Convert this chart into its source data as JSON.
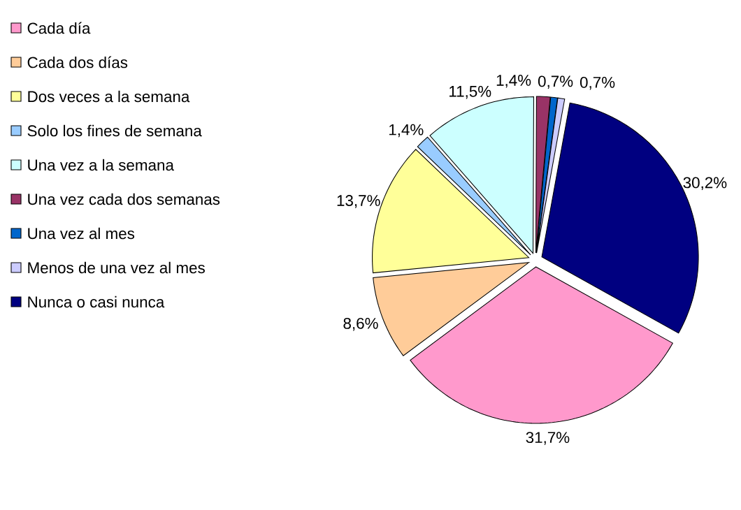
{
  "chart_data": {
    "type": "pie",
    "categories": [
      "Cada día",
      "Cada dos días",
      "Dos veces a la semana",
      "Solo los fines de semana",
      "Una vez a la semana",
      "Una vez cada dos semanas",
      "Una vez al mes",
      "Menos de una vez al mes",
      "Nunca o casi nunca"
    ],
    "values": [
      31.7,
      8.6,
      13.7,
      1.4,
      11.5,
      1.4,
      0.7,
      0.7,
      30.2
    ],
    "value_labels": [
      "31,7%",
      "8,6%",
      "13,7%",
      "1,4%",
      "11,5%",
      "1,4%",
      "0,7%",
      "0,7%",
      "30,2%"
    ],
    "colors": [
      "#ff99cc",
      "#ffcc99",
      "#ffff99",
      "#99ccff",
      "#ccffff",
      "#993366",
      "#0066cc",
      "#ccccff",
      "#000080"
    ],
    "legend": "top left"
  }
}
